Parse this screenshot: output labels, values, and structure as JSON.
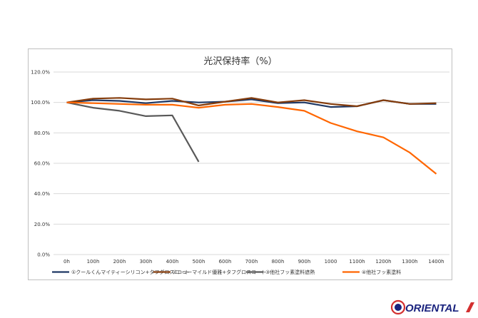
{
  "chart_data": {
    "type": "line",
    "title": "光沢保持率（%）",
    "categories": [
      "0h",
      "100h",
      "200h",
      "300h",
      "400h",
      "500h",
      "600h",
      "700h",
      "800h",
      "900h",
      "1000",
      "1100h",
      "1200h",
      "1300h",
      "1400h"
    ],
    "ylim": [
      0,
      120
    ],
    "yticks": [
      0,
      20,
      40,
      60,
      80,
      100,
      120
    ],
    "ytick_labels": [
      "0.0%",
      "20.0%",
      "40.0%",
      "60.0%",
      "80.0%",
      "100.0%",
      "120.0%"
    ],
    "grid": true,
    "legend_position": "bottom",
    "series": [
      {
        "name": "①クールくんマイティーシリコン+タフグロスコート",
        "color": "#1f3864",
        "values": [
          100,
          101.5,
          101,
          99.5,
          101,
          100,
          100.5,
          102,
          99.5,
          100,
          97,
          97.5,
          101.5,
          99,
          99
        ]
      },
      {
        "name": "②ニューマイルド優雅+タフグロスコート",
        "color": "#843c0c",
        "values": [
          100,
          102.5,
          103,
          102,
          102.5,
          98,
          100.5,
          103,
          100,
          101.5,
          99,
          97.5,
          101.5,
          99,
          99.5
        ]
      },
      {
        "name": "③他社フッ素塗料遮熱",
        "color": "#595959",
        "values": [
          100,
          96.5,
          94.5,
          91,
          91.5,
          61,
          null,
          null,
          null,
          null,
          null,
          null,
          null,
          null,
          null
        ]
      },
      {
        "name": "④他社フッ素塗料",
        "color": "#ff6600",
        "values": [
          100,
          99.5,
          99,
          98.5,
          98.5,
          96.5,
          98.5,
          99,
          97,
          94.5,
          86.5,
          81,
          77,
          67,
          53
        ]
      }
    ]
  },
  "logo": {
    "text": "ORIENTAL",
    "color": "#1a237e",
    "accent": "#d32f2f"
  }
}
